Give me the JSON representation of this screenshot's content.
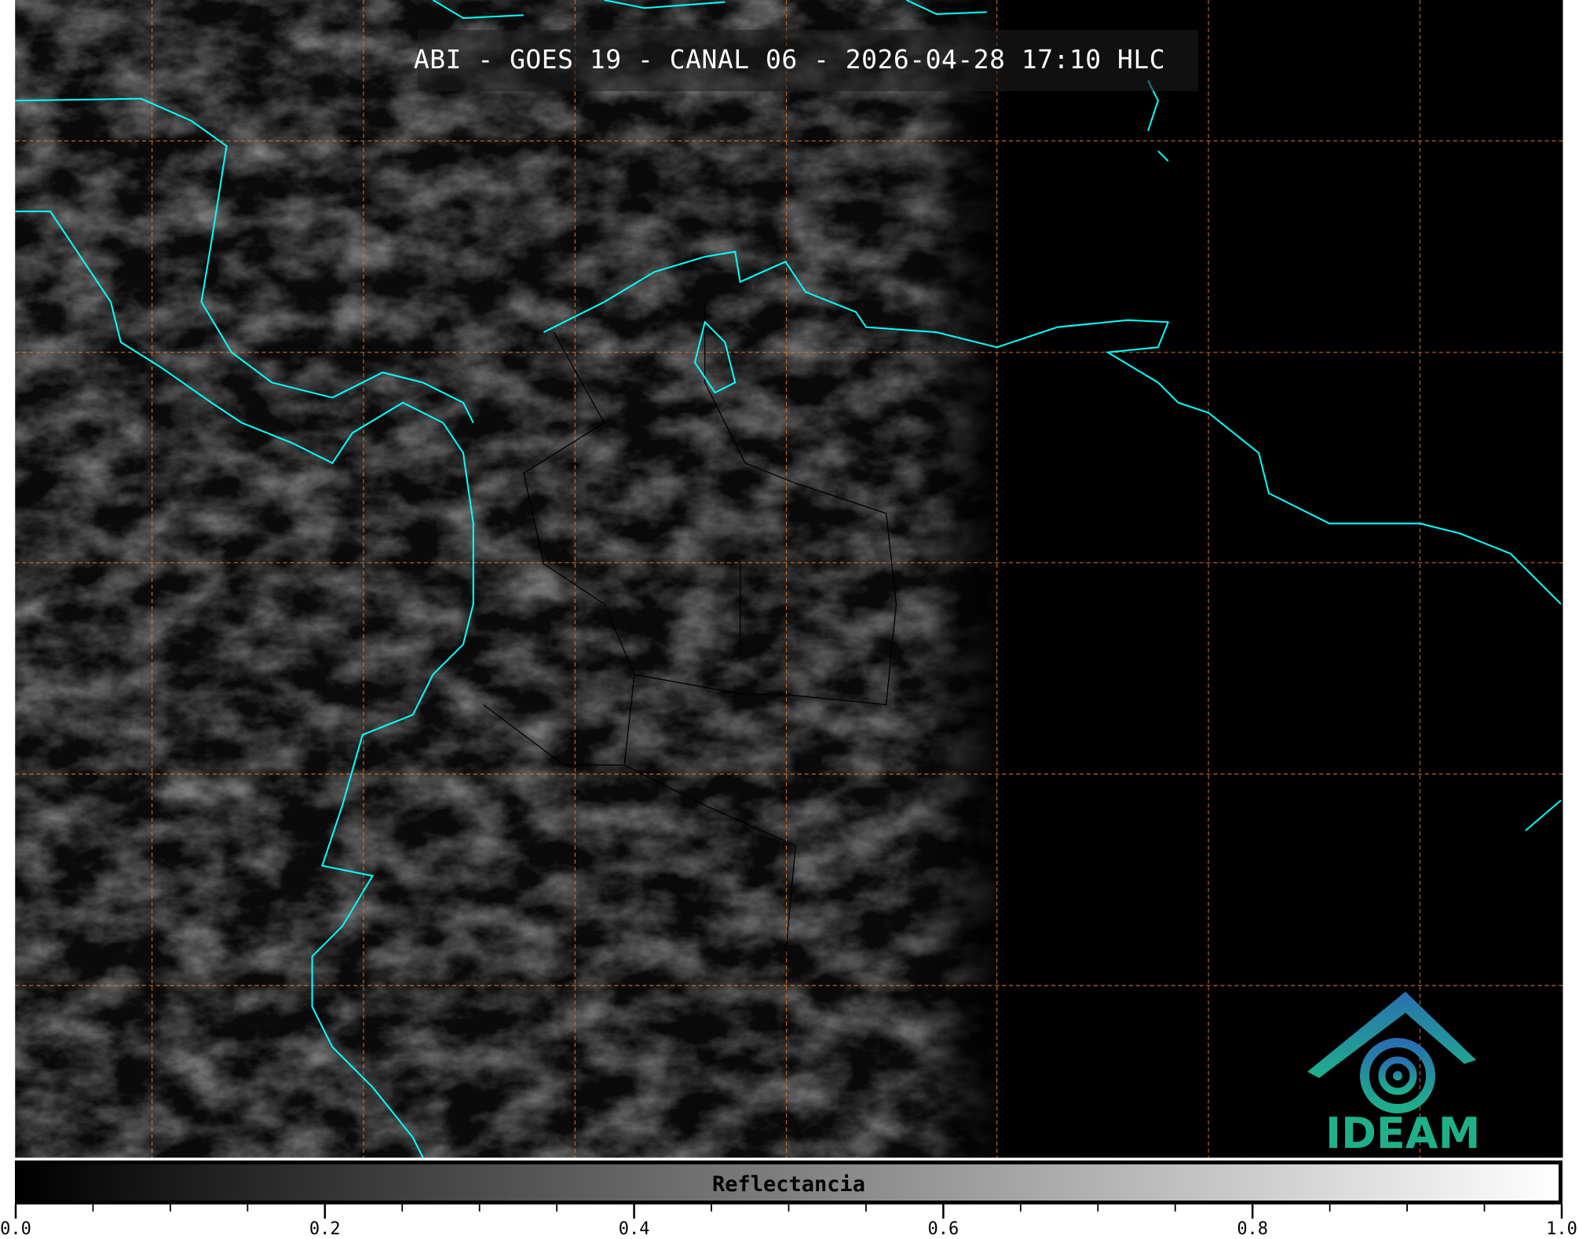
{
  "title": "ABI - GOES 19 - CANAL 06 - 2026-04-28 17:10 HLC",
  "colorbar": {
    "label": "Reflectancia",
    "range": [
      0.0,
      1.0
    ],
    "colormap": [
      "#000000",
      "#ffffff"
    ],
    "major_ticks": [
      "0.0",
      "0.2",
      "0.4",
      "0.6",
      "0.8",
      "1.0"
    ],
    "minor_step": 0.05
  },
  "logo": {
    "text": "IDEAM"
  },
  "colors": {
    "coastline": "#00ffff",
    "gridlines": "#e07020",
    "borders": "#000000",
    "logo": "#1fb08a"
  }
}
